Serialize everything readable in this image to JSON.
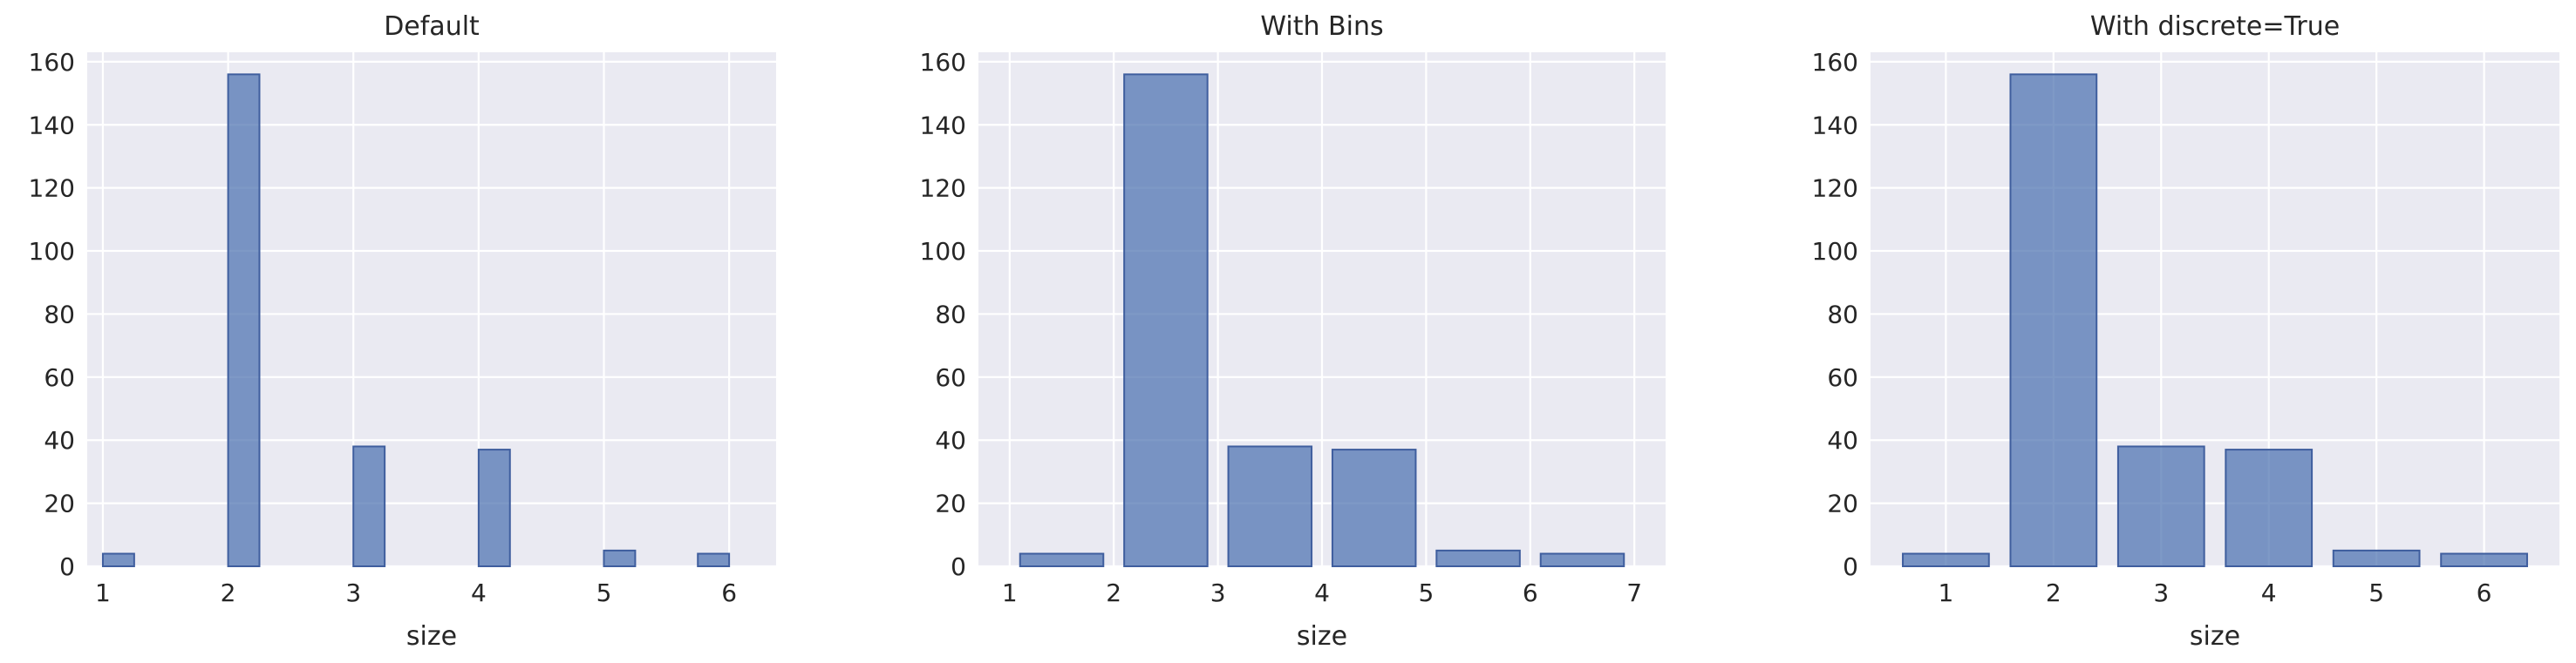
{
  "colors": {
    "background": "#eaeaf2",
    "grid": "#ffffff",
    "bar_fill": "#4c72b0",
    "bar_edge": "#3f5e9e",
    "text": "#262626"
  },
  "chart_data": [
    {
      "type": "bar",
      "title": "Default",
      "xlabel": "size",
      "ylabel": "",
      "xlim": [
        0.875,
        6.375
      ],
      "ylim": [
        0,
        163
      ],
      "xticks": [
        1,
        2,
        3,
        4,
        5,
        6
      ],
      "yticks": [
        0,
        20,
        40,
        60,
        80,
        100,
        120,
        140,
        160
      ],
      "grid": true,
      "bins": [
        {
          "x0": 1.0,
          "x1": 1.25,
          "count": 4
        },
        {
          "x0": 1.25,
          "x1": 1.5,
          "count": 0
        },
        {
          "x0": 1.5,
          "x1": 1.75,
          "count": 0
        },
        {
          "x0": 1.75,
          "x1": 2.0,
          "count": 0
        },
        {
          "x0": 2.0,
          "x1": 2.25,
          "count": 156
        },
        {
          "x0": 2.25,
          "x1": 2.5,
          "count": 0
        },
        {
          "x0": 2.5,
          "x1": 2.75,
          "count": 0
        },
        {
          "x0": 2.75,
          "x1": 3.0,
          "count": 0
        },
        {
          "x0": 3.0,
          "x1": 3.25,
          "count": 38
        },
        {
          "x0": 3.25,
          "x1": 3.5,
          "count": 0
        },
        {
          "x0": 3.5,
          "x1": 3.75,
          "count": 0
        },
        {
          "x0": 3.75,
          "x1": 4.0,
          "count": 0
        },
        {
          "x0": 4.0,
          "x1": 4.25,
          "count": 37
        },
        {
          "x0": 4.25,
          "x1": 4.5,
          "count": 0
        },
        {
          "x0": 4.5,
          "x1": 4.75,
          "count": 0
        },
        {
          "x0": 4.75,
          "x1": 5.0,
          "count": 0
        },
        {
          "x0": 5.0,
          "x1": 5.25,
          "count": 5
        },
        {
          "x0": 5.25,
          "x1": 5.5,
          "count": 0
        },
        {
          "x0": 5.5,
          "x1": 5.75,
          "count": 0
        },
        {
          "x0": 5.75,
          "x1": 6.0,
          "count": 4
        }
      ]
    },
    {
      "type": "bar",
      "title": "With Bins",
      "xlabel": "size",
      "ylabel": "",
      "xlim": [
        0.7,
        7.3
      ],
      "ylim": [
        0,
        163
      ],
      "xticks": [
        1,
        2,
        3,
        4,
        5,
        6,
        7
      ],
      "yticks": [
        0,
        20,
        40,
        60,
        80,
        100,
        120,
        140,
        160
      ],
      "grid": true,
      "bins": [
        {
          "x0": 1.1,
          "x1": 1.9,
          "count": 4
        },
        {
          "x0": 2.1,
          "x1": 2.9,
          "count": 156
        },
        {
          "x0": 3.1,
          "x1": 3.9,
          "count": 38
        },
        {
          "x0": 4.1,
          "x1": 4.9,
          "count": 37
        },
        {
          "x0": 5.1,
          "x1": 5.9,
          "count": 5
        },
        {
          "x0": 6.1,
          "x1": 6.9,
          "count": 4
        }
      ]
    },
    {
      "type": "bar",
      "title": "With discrete=True",
      "xlabel": "size",
      "ylabel": "",
      "xlim": [
        0.3,
        6.7
      ],
      "ylim": [
        0,
        163
      ],
      "xticks": [
        1,
        2,
        3,
        4,
        5,
        6
      ],
      "yticks": [
        0,
        20,
        40,
        60,
        80,
        100,
        120,
        140,
        160
      ],
      "grid": true,
      "bins": [
        {
          "x0": 0.6,
          "x1": 1.4,
          "count": 4
        },
        {
          "x0": 1.6,
          "x1": 2.4,
          "count": 156
        },
        {
          "x0": 2.6,
          "x1": 3.4,
          "count": 38
        },
        {
          "x0": 3.6,
          "x1": 4.4,
          "count": 37
        },
        {
          "x0": 4.6,
          "x1": 5.4,
          "count": 5
        },
        {
          "x0": 5.6,
          "x1": 6.4,
          "count": 4
        }
      ]
    }
  ]
}
